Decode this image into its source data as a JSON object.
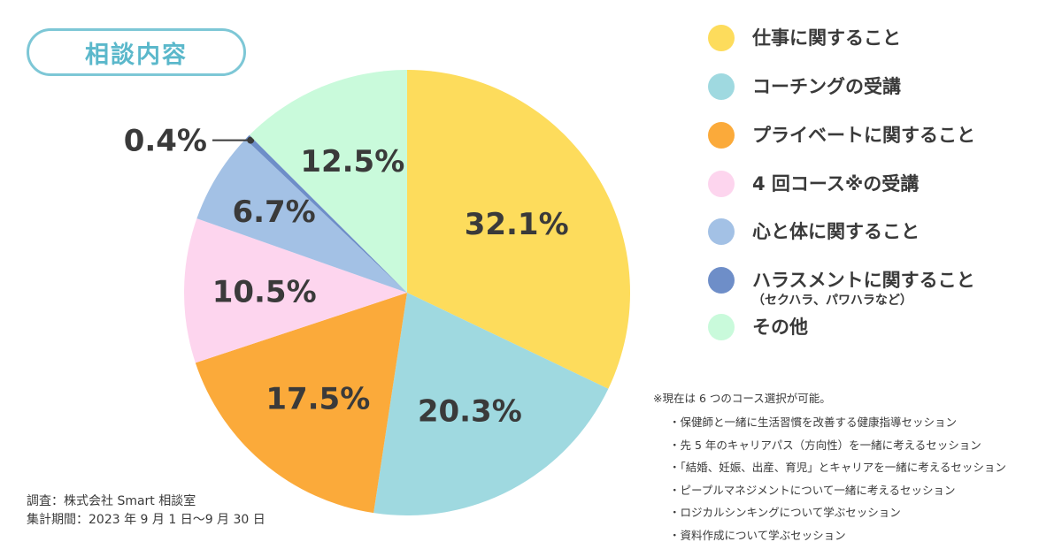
{
  "header": {
    "title": "相談内容"
  },
  "chart_data": {
    "type": "pie",
    "title": "相談内容",
    "start": "top",
    "direction": "clockwise",
    "slices": [
      {
        "label": "仕事に関すること",
        "value": 32.1,
        "display": "32.1%",
        "color": "#fddc5c"
      },
      {
        "label": "コーチングの受講",
        "value": 20.3,
        "display": "20.3%",
        "color": "#9fd9e0"
      },
      {
        "label": "プライベートに関すること",
        "value": 17.5,
        "display": "17.5%",
        "color": "#fbaa3a"
      },
      {
        "label": "4 回コース※の受講",
        "value": 10.5,
        "display": "10.5%",
        "color": "#fdd5ee"
      },
      {
        "label": "心と体に関すること",
        "value": 6.7,
        "display": "6.7%",
        "color": "#a3c1e5"
      },
      {
        "label": "ハラスメントに関すること",
        "sublabel": "（セクハラ、パワハラなど）",
        "value": 0.4,
        "display": "0.4%",
        "color": "#6e8ec8"
      },
      {
        "label": "その他",
        "value": 12.5,
        "display": "12.5%",
        "color": "#c9fadb"
      }
    ],
    "legend_placement": "right"
  },
  "note": {
    "heading": "※現在は 6 つのコース選択が可能。",
    "items": [
      "保健師と一緒に生活習慣を改善する健康指導セッション",
      "先 5 年のキャリアパス（方向性）を一緒に考えるセッション",
      "「結婚、妊娠、出産、育児」とキャリアを一緒に考えるセッション",
      "ピープルマネジメントについて一緒に考えるセッション",
      "ロジカルシンキングについて学ぶセッション",
      "資料作成について学ぶセッション"
    ]
  },
  "source": {
    "survey": "調査：株式会社 Smart 相談室",
    "period": "集計期間：2023 年 9 月 1 日〜9 月 30 日"
  }
}
